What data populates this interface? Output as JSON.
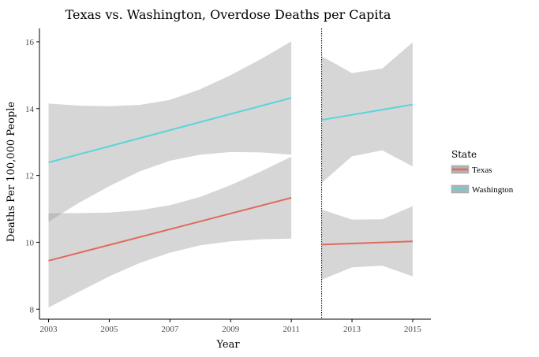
{
  "chart_data": {
    "type": "line",
    "title": "Texas vs. Washington, Overdose Deaths per Capita",
    "xlabel": "Year",
    "ylabel": "Deaths Per 100,000 People",
    "xlim": [
      2002.7,
      2015.6
    ],
    "ylim": [
      7.7,
      16.4
    ],
    "x_ticks": [
      2003,
      2005,
      2007,
      2009,
      2011,
      2013,
      2015
    ],
    "y_ticks": [
      8,
      10,
      12,
      14,
      16
    ],
    "grid": false,
    "vline": {
      "x": 2012,
      "style": "dotted"
    },
    "legend": {
      "title": "State",
      "position": "right"
    },
    "series": [
      {
        "name": "Texas",
        "color": "#e06a5c",
        "segments": [
          {
            "x": [
              2003,
              2011
            ],
            "y": [
              9.45,
              11.33
            ]
          },
          {
            "x": [
              2012,
              2015
            ],
            "y": [
              9.93,
              10.03
            ]
          }
        ],
        "bands": [
          {
            "x": [
              2003,
              2004,
              2005,
              2006,
              2007,
              2008,
              2009,
              2010,
              2011
            ],
            "lower": [
              8.05,
              8.52,
              8.98,
              9.38,
              9.69,
              9.91,
              10.03,
              10.09,
              10.11
            ],
            "upper": [
              10.87,
              10.87,
              10.89,
              10.96,
              11.11,
              11.36,
              11.71,
              12.12,
              12.56
            ]
          },
          {
            "x": [
              2012,
              2013,
              2014,
              2015
            ],
            "lower": [
              8.88,
              9.25,
              9.3,
              8.98
            ],
            "upper": [
              10.98,
              10.68,
              10.69,
              11.08
            ]
          }
        ]
      },
      {
        "name": "Washington",
        "color": "#5bd4db",
        "segments": [
          {
            "x": [
              2003,
              2011
            ],
            "y": [
              12.39,
              14.32
            ]
          },
          {
            "x": [
              2012,
              2015
            ],
            "y": [
              13.66,
              14.12
            ]
          }
        ],
        "bands": [
          {
            "x": [
              2003,
              2004,
              2005,
              2006,
              2007,
              2008,
              2009,
              2010,
              2011
            ],
            "lower": [
              10.62,
              11.18,
              11.68,
              12.12,
              12.44,
              12.62,
              12.7,
              12.69,
              12.62
            ],
            "upper": [
              14.15,
              14.09,
              14.07,
              14.11,
              14.26,
              14.58,
              15.0,
              15.48,
              16.01
            ]
          },
          {
            "x": [
              2012,
              2013,
              2014,
              2015
            ],
            "lower": [
              11.78,
              12.57,
              12.75,
              12.27
            ],
            "upper": [
              15.57,
              15.06,
              15.2,
              15.98
            ]
          }
        ]
      }
    ]
  }
}
